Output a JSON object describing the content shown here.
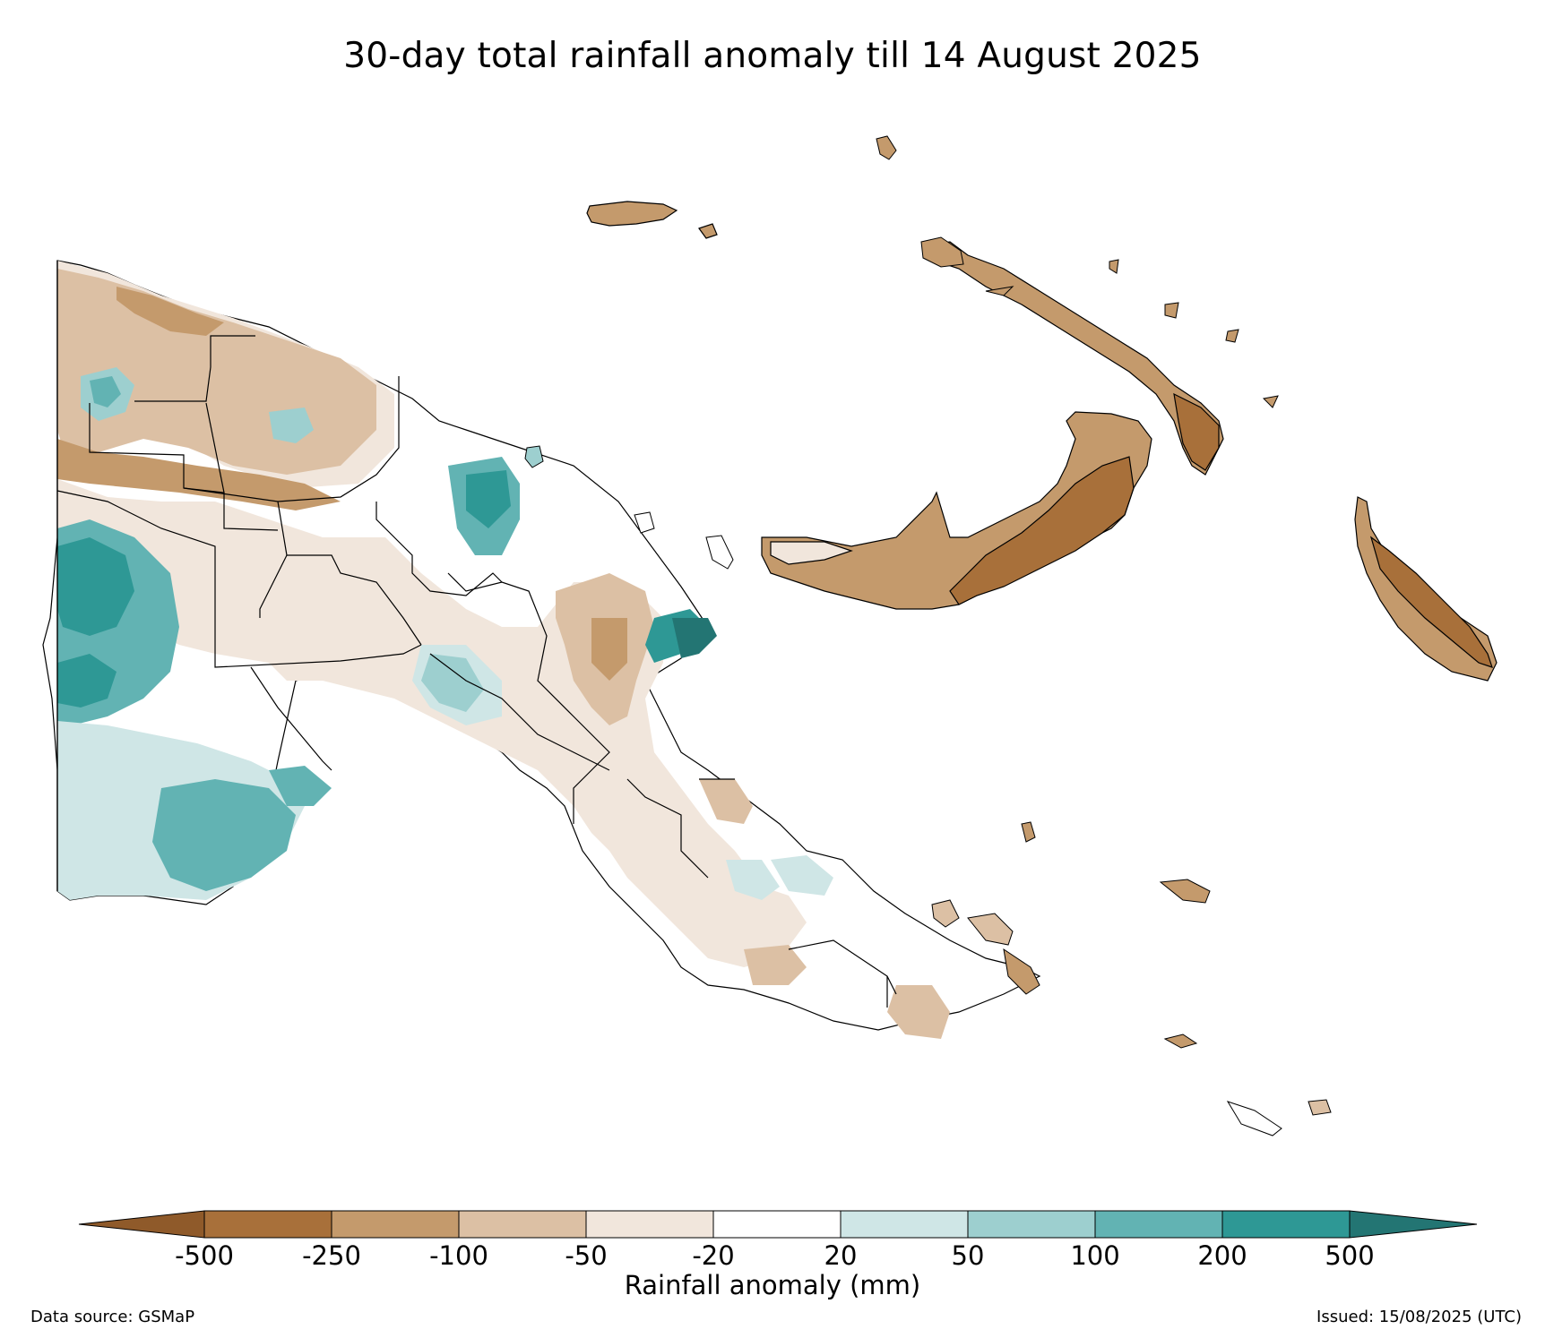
{
  "title": "30-day total rainfall anomaly till 14 August 2025",
  "colorbar": {
    "label": "Rainfall anomaly (mm)",
    "ticks": [
      "-500",
      "-250",
      "-100",
      "-50",
      "-20",
      "20",
      "50",
      "100",
      "200",
      "500"
    ],
    "colors": {
      "below_min": "#8f5a2a",
      "c1": "#a8703a",
      "c2": "#c49a6c",
      "c3": "#dcc0a4",
      "c4": "#f1e6dc",
      "c5": "#ffffff",
      "c6": "#cfe6e6",
      "c7": "#9dcfcf",
      "c8": "#62b3b3",
      "c9": "#2e9895",
      "above_max": "#237573"
    }
  },
  "footer": {
    "source": "Data source: GSMaP",
    "issued": "Issued: 15/08/2025 (UTC)"
  }
}
